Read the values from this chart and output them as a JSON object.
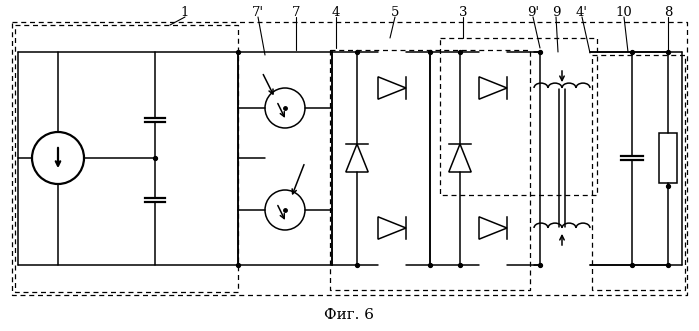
{
  "title": "Фиг. 6",
  "bg_color": "#ffffff",
  "fig_width": 6.99,
  "fig_height": 3.31,
  "dpi": 100
}
